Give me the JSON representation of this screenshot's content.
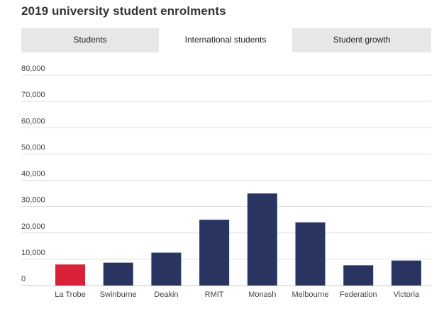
{
  "title": "2019 university student enrolments",
  "tabs": [
    {
      "label": "Students",
      "active": false
    },
    {
      "label": "International students",
      "active": true
    },
    {
      "label": "Student growth",
      "active": false
    }
  ],
  "colors": {
    "highlight": "#d9223a",
    "bar": "#293461",
    "gridline": "#e0e0e0",
    "tab_bg": "#e7e7e7"
  },
  "chart_data": {
    "type": "bar",
    "categories": [
      "La Trobe",
      "Swinburne",
      "Deakin",
      "RMIT",
      "Monash",
      "Melbourne",
      "Federation",
      "Victoria"
    ],
    "values": [
      8000,
      8700,
      12500,
      25000,
      35000,
      24000,
      7700,
      9500
    ],
    "highlight_category": "La Trobe",
    "ylim": [
      0,
      80000
    ],
    "yticks": [
      0,
      10000,
      20000,
      30000,
      40000,
      50000,
      60000,
      70000,
      80000
    ],
    "ytick_labels": [
      "0",
      "10,000",
      "20,000",
      "30,000",
      "40,000",
      "50,000",
      "60,000",
      "70,000",
      "80,000"
    ],
    "grid": true,
    "xlabel": "",
    "ylabel": ""
  }
}
